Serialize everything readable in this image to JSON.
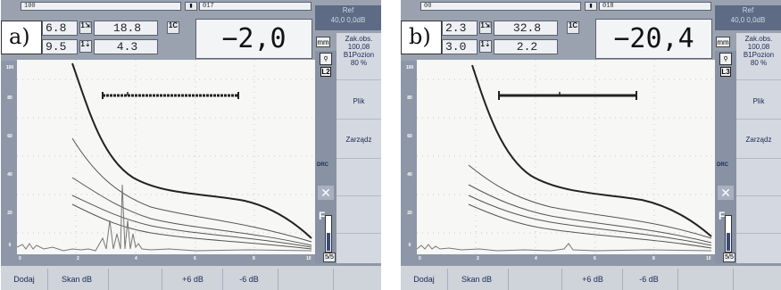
{
  "panels": [
    {
      "id": "a",
      "corner_label": "a)",
      "top_left_small": "100",
      "top_mid_small": "017",
      "field_1": "6.8",
      "field_2": "18.8",
      "field_3": "9.5",
      "field_4": "4.3",
      "big_value": "−2,0",
      "ref_label": "Ref",
      "ref_value": "40,0 0,0dB",
      "unit": "mm",
      "right_items": [
        "Zak.obs.",
        "100,08",
        "B1Pozion",
        "80 %",
        "Plik",
        "Zarządz"
      ],
      "l_badge": "L2",
      "drc": "DRC",
      "x_label": "✕",
      "f_label": "F",
      "page": "5/5",
      "footer": [
        "Dodaj",
        "Skan dB",
        "+6 dB",
        "-6 dB"
      ],
      "y_ticks": [
        "100",
        "80",
        "60",
        "40",
        "20",
        "0"
      ],
      "x_ticks": [
        "0",
        "2",
        "4",
        "6",
        "8",
        "10"
      ]
    },
    {
      "id": "b",
      "corner_label": "b)",
      "top_left_small": "00",
      "top_mid_small": "018",
      "field_1": "2.3",
      "field_2": "32.8",
      "field_3": "3.0",
      "field_4": "2.2",
      "big_value": "−20,4",
      "ref_label": "Ref",
      "ref_value": "40,0 0,0dB",
      "unit": "mm",
      "right_items": [
        "Zak.obs.",
        "100,08",
        "B1Pozion",
        "80 %",
        "Plik",
        "Zarządz"
      ],
      "l_badge": "L3",
      "drc": "DRC",
      "x_label": "✕",
      "f_label": "F",
      "page": "5/5",
      "footer": [
        "Dodaj",
        "Skan dB",
        "+6 dB",
        "-6 dB"
      ],
      "y_ticks": [
        "100",
        "80",
        "60",
        "40",
        "20",
        "0"
      ],
      "x_ticks": [
        "0",
        "2",
        "4",
        "6",
        "8",
        "10"
      ]
    }
  ],
  "colors": {
    "plot_bg": "#f7f7f5",
    "header_bg": "#9aa2b0",
    "sidebar_bg": "#d4d8e0",
    "ref_bg": "#5d6b85",
    "curve": "#222222"
  }
}
